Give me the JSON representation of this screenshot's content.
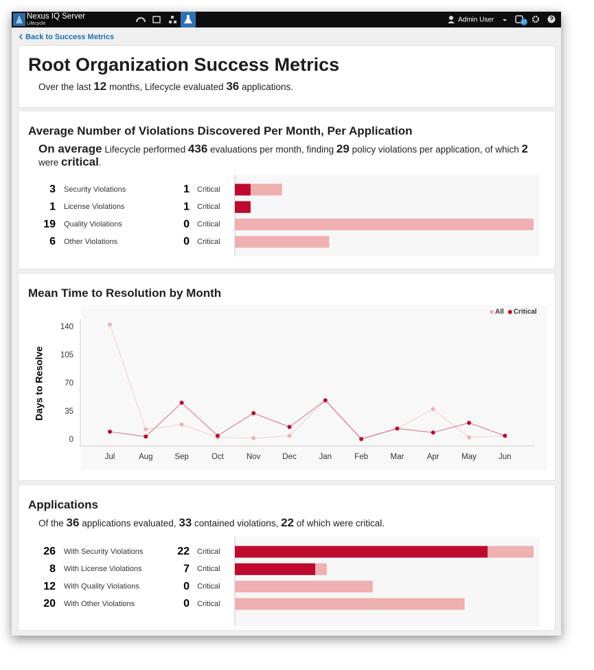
{
  "header": {
    "product": "Nexus IQ Server",
    "product_subtitle": "Lifecycle",
    "user": "Admin User",
    "notification_count": 17
  },
  "back_link": "Back to Success Metrics",
  "page_title": "Root Organization Success Metrics",
  "page_summary": [
    {
      "text": "Over the last "
    },
    {
      "text": 12,
      "bold": true
    },
    {
      "text": " months, Lifecycle evaluated "
    },
    {
      "text": 36,
      "bold": true
    },
    {
      "text": " applications."
    }
  ],
  "chart_data": [
    {
      "type": "bar",
      "orientation": "horizontal",
      "title": "Average Number of Violations Discovered Per Month, Per Application",
      "subtitle": [
        {
          "text": "On average",
          "bold": true
        },
        {
          "text": " Lifecycle performed "
        },
        {
          "text": 436,
          "bold": true
        },
        {
          "text": " evaluations per month, finding "
        },
        {
          "text": 29,
          "bold": true
        },
        {
          "text": " policy violations per application, of which "
        },
        {
          "text": 2,
          "bold": true
        },
        {
          "text": " were "
        },
        {
          "text": "critical",
          "bold": true
        },
        {
          "text": "."
        }
      ],
      "categories": [
        "Security Violations",
        "License Violations",
        "Quality Violations",
        "Other Violations"
      ],
      "series": [
        {
          "color": "#eeb0b0",
          "values": [
            3,
            1,
            19,
            6
          ]
        },
        {
          "name": "Critical",
          "color": "#be0a2e",
          "values": [
            1,
            1,
            0,
            0
          ]
        }
      ]
    },
    {
      "type": "line",
      "title": "Mean Time to Resolution by Month",
      "y_label": "Days to Resolve",
      "categories": [
        "Jul",
        "Aug",
        "Sep",
        "Oct",
        "Nov",
        "Dec",
        "Jan",
        "Feb",
        "Mar",
        "Apr",
        "May",
        "Jun"
      ],
      "series": [
        {
          "name": "All",
          "color": "#f0b3b8",
          "values": [
            143,
            13,
            19,
            3,
            2,
            5,
            49,
            1,
            14,
            38,
            3,
            5
          ]
        },
        {
          "name": "Critical",
          "color": "#be0a2e",
          "values": [
            10,
            4,
            46,
            5,
            33,
            16,
            49,
            1,
            14,
            9,
            21,
            5
          ]
        }
      ],
      "ylim": [
        0,
        150
      ],
      "yticks": [
        0,
        35,
        70,
        105,
        140
      ],
      "legend": "top-right"
    },
    {
      "type": "bar",
      "orientation": "horizontal",
      "title": "Applications",
      "subtitle": [
        {
          "text": "Of the "
        },
        {
          "text": 36,
          "bold": true
        },
        {
          "text": " applications evaluated, "
        },
        {
          "text": 33,
          "bold": true
        },
        {
          "text": " contained violations, "
        },
        {
          "text": 22,
          "bold": true
        },
        {
          "text": " of which were critical."
        }
      ],
      "categories": [
        "With Security Violations",
        "With License Violations",
        "With Quality Violations",
        "With Other Violations"
      ],
      "series": [
        {
          "color": "#eeb0b0",
          "values": [
            26,
            8,
            12,
            20
          ]
        },
        {
          "name": "Critical",
          "color": "#be0a2e",
          "values": [
            22,
            7,
            0,
            0
          ]
        }
      ]
    }
  ]
}
